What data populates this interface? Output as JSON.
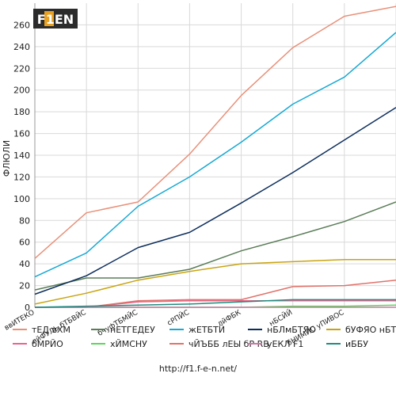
{
  "logo": {
    "text": "F1EN"
  },
  "footer": {
    "url": "http://f1.f-e-n.net/"
  },
  "chart_data": {
    "type": "line",
    "ylabel": "ФЛЮЛИ",
    "ylim": [
      0,
      280
    ],
    "yticks": [
      0,
      20,
      40,
      60,
      80,
      100,
      120,
      140,
      160,
      180,
      200,
      220,
      240,
      260
    ],
    "categories": [
      "ввИТЕКО",
      "лйФУЛЬ бТБВЙС",
      "бчуфТБМЙС",
      "сРПЙС",
      "лйФБК",
      "нБСЙЙ",
      "бНИМЙС уПИВОС",
      ""
    ],
    "grid": true,
    "legend_position": "bottom",
    "series": [
      {
        "name": "тЕД вХМ",
        "color": "#e8917a",
        "values": [
          45,
          87,
          97,
          141,
          195,
          239,
          268,
          277
        ]
      },
      {
        "name": "нЕТГЕДЕУ",
        "color": "#5a7d58",
        "values": [
          16,
          27,
          27,
          35,
          52,
          65,
          79,
          97
        ]
      },
      {
        "name": "жЕТБТЙ",
        "color": "#17a9d4",
        "values": [
          28,
          50,
          93,
          120,
          152,
          187,
          212,
          253
        ]
      },
      {
        "name": "нБЛмБТЯО",
        "color": "#0d2e5c",
        "values": [
          12,
          29,
          55,
          69,
          96,
          124,
          154,
          184
        ]
      },
      {
        "name": "бУФЯО нБТФЙО",
        "color": "#c9a412",
        "values": [
          3,
          13,
          25,
          33,
          40,
          42,
          44,
          44
        ]
      },
      {
        "name": "бМРЙО",
        "color": "#e8648a",
        "values": [
          0,
          0,
          5,
          6,
          6,
          6,
          6,
          6
        ]
      },
      {
        "name": "хЙМСНУ",
        "color": "#5cd65c",
        "values": [
          0,
          0,
          0,
          0,
          0,
          1,
          1,
          2
        ]
      },
      {
        "name": "чЙЪББ лЕЫ бР RB",
        "color": "#e0726a",
        "values": [
          0,
          0,
          6,
          7,
          7,
          19,
          20,
          25
        ]
      },
      {
        "name": "уЕКЛ F1",
        "color": "#cc79a7",
        "values": [
          0,
          0,
          0,
          0,
          0,
          0,
          0,
          0
        ]
      },
      {
        "name": "иББУ",
        "color": "#1f8a80",
        "values": [
          0,
          1,
          2,
          3,
          5,
          7,
          7,
          7
        ]
      }
    ]
  }
}
